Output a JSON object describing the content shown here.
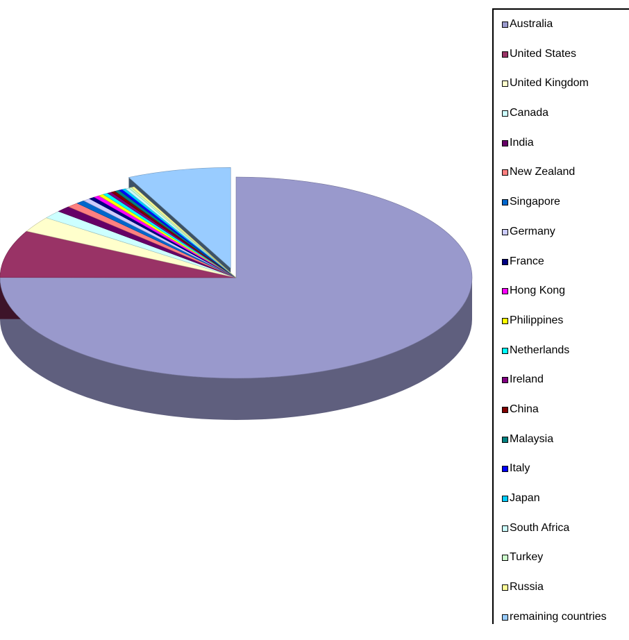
{
  "chart_data": {
    "type": "pie",
    "title": "",
    "exploded_slice": "remaining countries",
    "legend_position": "right",
    "categories": [
      "Australia",
      "United States",
      "United Kingdom",
      "Canada",
      "India",
      "New Zealand",
      "Singapore",
      "Germany",
      "France",
      "Hong Kong",
      "Philippines",
      "Netherlands",
      "Ireland",
      "China",
      "Malaysia",
      "Italy",
      "Japan",
      "South Africa",
      "Turkey",
      "Russia",
      "remaining countries"
    ],
    "values": [
      75.0,
      7.6,
      2.5,
      1.3,
      1.0,
      0.8,
      0.6,
      0.5,
      0.4,
      0.4,
      0.35,
      0.35,
      0.3,
      0.3,
      0.3,
      0.25,
      0.25,
      0.25,
      0.2,
      0.2,
      7.1
    ],
    "colors": [
      "#9999cc",
      "#993366",
      "#ffffcc",
      "#ccffff",
      "#660066",
      "#ff8080",
      "#0066cc",
      "#ccccff",
      "#000080",
      "#ff00ff",
      "#ffff00",
      "#00ffff",
      "#800080",
      "#800000",
      "#008080",
      "#0000ff",
      "#00ccff",
      "#ccffff",
      "#ccffcc",
      "#ffff99",
      "#99ccff"
    ]
  }
}
